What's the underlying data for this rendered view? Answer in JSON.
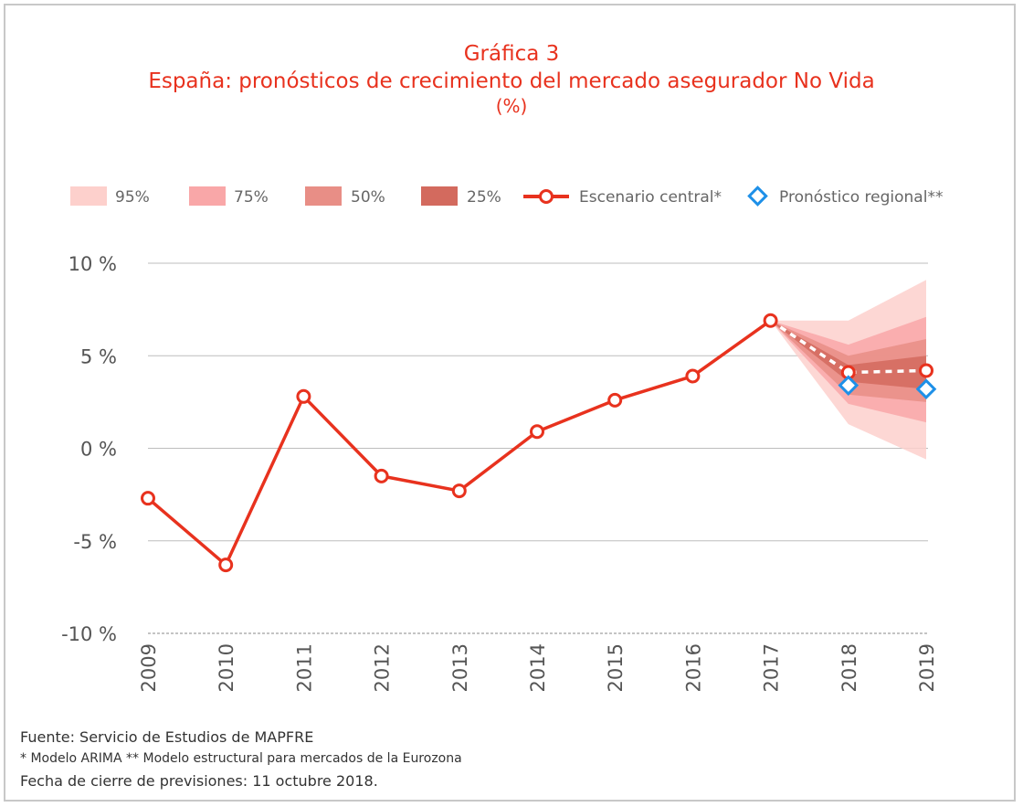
{
  "title": {
    "line1": "Gráfica 3",
    "line2": "España: pronósticos de crecimiento del mercado asegurador No Vida",
    "line3": "(%)"
  },
  "legend": {
    "band95": "95%",
    "band75": "75%",
    "band50": "50%",
    "band25": "25%",
    "central": "Escenario central*",
    "regional": "Pronóstico regional**"
  },
  "footer": {
    "source": "Fuente: Servicio de Estudios de MAPFRE",
    "note": "* Modelo ARIMA    ** Modelo estructural para mercados de la Eurozona",
    "date": "Fecha de cierre de previsiones: 11 octubre 2018."
  },
  "colors": {
    "accent": "#e8321e",
    "band95": "#fdd0cc",
    "band75": "#f9a7a8",
    "band50": "#e88e86",
    "band25": "#d36a5e",
    "regional": "#1e90e8",
    "grid": "#bdbdbd"
  },
  "chart_data": {
    "type": "line",
    "x": [
      "2009",
      "2010",
      "2011",
      "2012",
      "2013",
      "2014",
      "2015",
      "2016",
      "2017",
      "2018",
      "2019"
    ],
    "ylim": [
      -10,
      10
    ],
    "yticks": [
      10,
      5,
      0,
      -5,
      -10
    ],
    "ytick_labels": [
      "10 %",
      "5 %",
      "0 %",
      "-5 %",
      "-10 %"
    ],
    "series": [
      {
        "name": "Escenario central*",
        "values": [
          -2.7,
          -6.3,
          2.8,
          -1.5,
          -2.3,
          0.9,
          2.6,
          3.9,
          6.9,
          4.1,
          4.2
        ]
      },
      {
        "name": "Pronóstico regional**",
        "x": [
          "2018",
          "2019"
        ],
        "values": [
          3.4,
          3.2
        ]
      }
    ],
    "fan_bands": [
      {
        "name": "95%",
        "x": [
          "2017",
          "2018",
          "2019"
        ],
        "upper": [
          6.9,
          6.9,
          9.1
        ],
        "lower": [
          6.9,
          1.3,
          -0.6
        ]
      },
      {
        "name": "75%",
        "x": [
          "2017",
          "2018",
          "2019"
        ],
        "upper": [
          6.9,
          5.6,
          7.1
        ],
        "lower": [
          6.9,
          2.4,
          1.4
        ]
      },
      {
        "name": "50%",
        "x": [
          "2017",
          "2018",
          "2019"
        ],
        "upper": [
          6.9,
          5.0,
          5.9
        ],
        "lower": [
          6.9,
          2.9,
          2.5
        ]
      },
      {
        "name": "25%",
        "x": [
          "2017",
          "2018",
          "2019"
        ],
        "upper": [
          6.9,
          4.5,
          5.0
        ],
        "lower": [
          6.9,
          3.6,
          3.2
        ]
      }
    ]
  }
}
